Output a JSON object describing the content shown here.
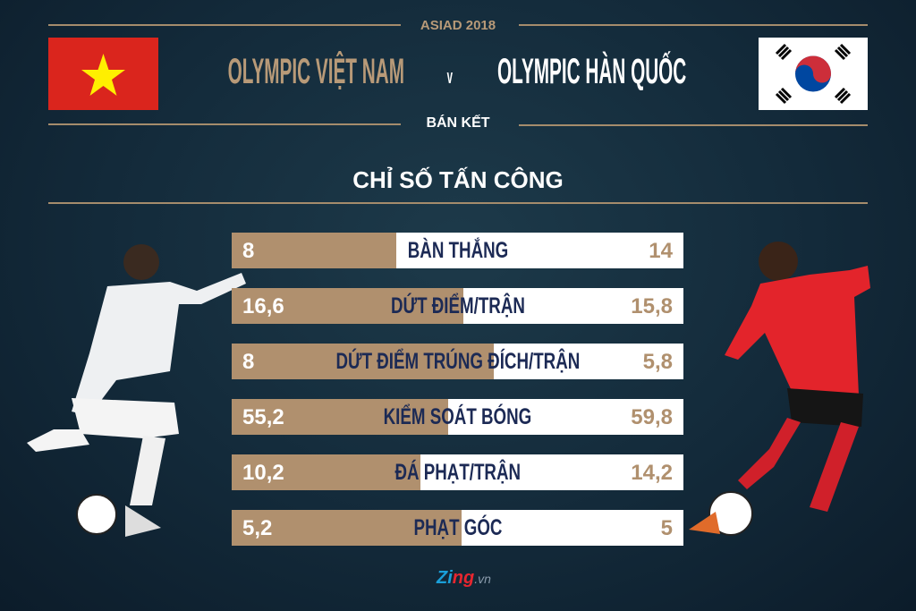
{
  "header": {
    "event": "ASIAD 2018",
    "team_left": "OLYMPIC VIỆT NAM",
    "versus": "v",
    "team_right": "OLYMPIC HÀN QUỐC",
    "stage": "BÁN KẾT",
    "section_title": "CHỈ SỐ TẤN CÔNG"
  },
  "colors": {
    "left_team": "#b0906e",
    "right_team": "#ffffff",
    "label": "#1c2a55",
    "background": "#132a3a"
  },
  "chart_data": {
    "type": "bar",
    "stacked_share": true,
    "categories": [
      "BÀN THẮNG",
      "DỨT ĐIỂM/TRẬN",
      "DỨT ĐIỂM TRÚNG ĐÍCH/TRẬN",
      "KIỂM SOÁT BÓNG",
      "ĐÁ PHẠT/TRẬN",
      "PHẠT GÓC"
    ],
    "series": [
      {
        "name": "OLYMPIC VIỆT NAM",
        "values": [
          8,
          16.6,
          8,
          55.2,
          10.2,
          5.2
        ],
        "labels": [
          "8",
          "16,6",
          "8",
          "55,2",
          "10,2",
          "5,2"
        ]
      },
      {
        "name": "OLYMPIC HÀN QUỐC",
        "values": [
          14,
          15.8,
          5.8,
          59.8,
          14.2,
          5
        ],
        "labels": [
          "14",
          "15,8",
          "5,8",
          "59,8",
          "14,2",
          "5"
        ]
      }
    ]
  },
  "footer": {
    "logo": "Zing.vn"
  }
}
